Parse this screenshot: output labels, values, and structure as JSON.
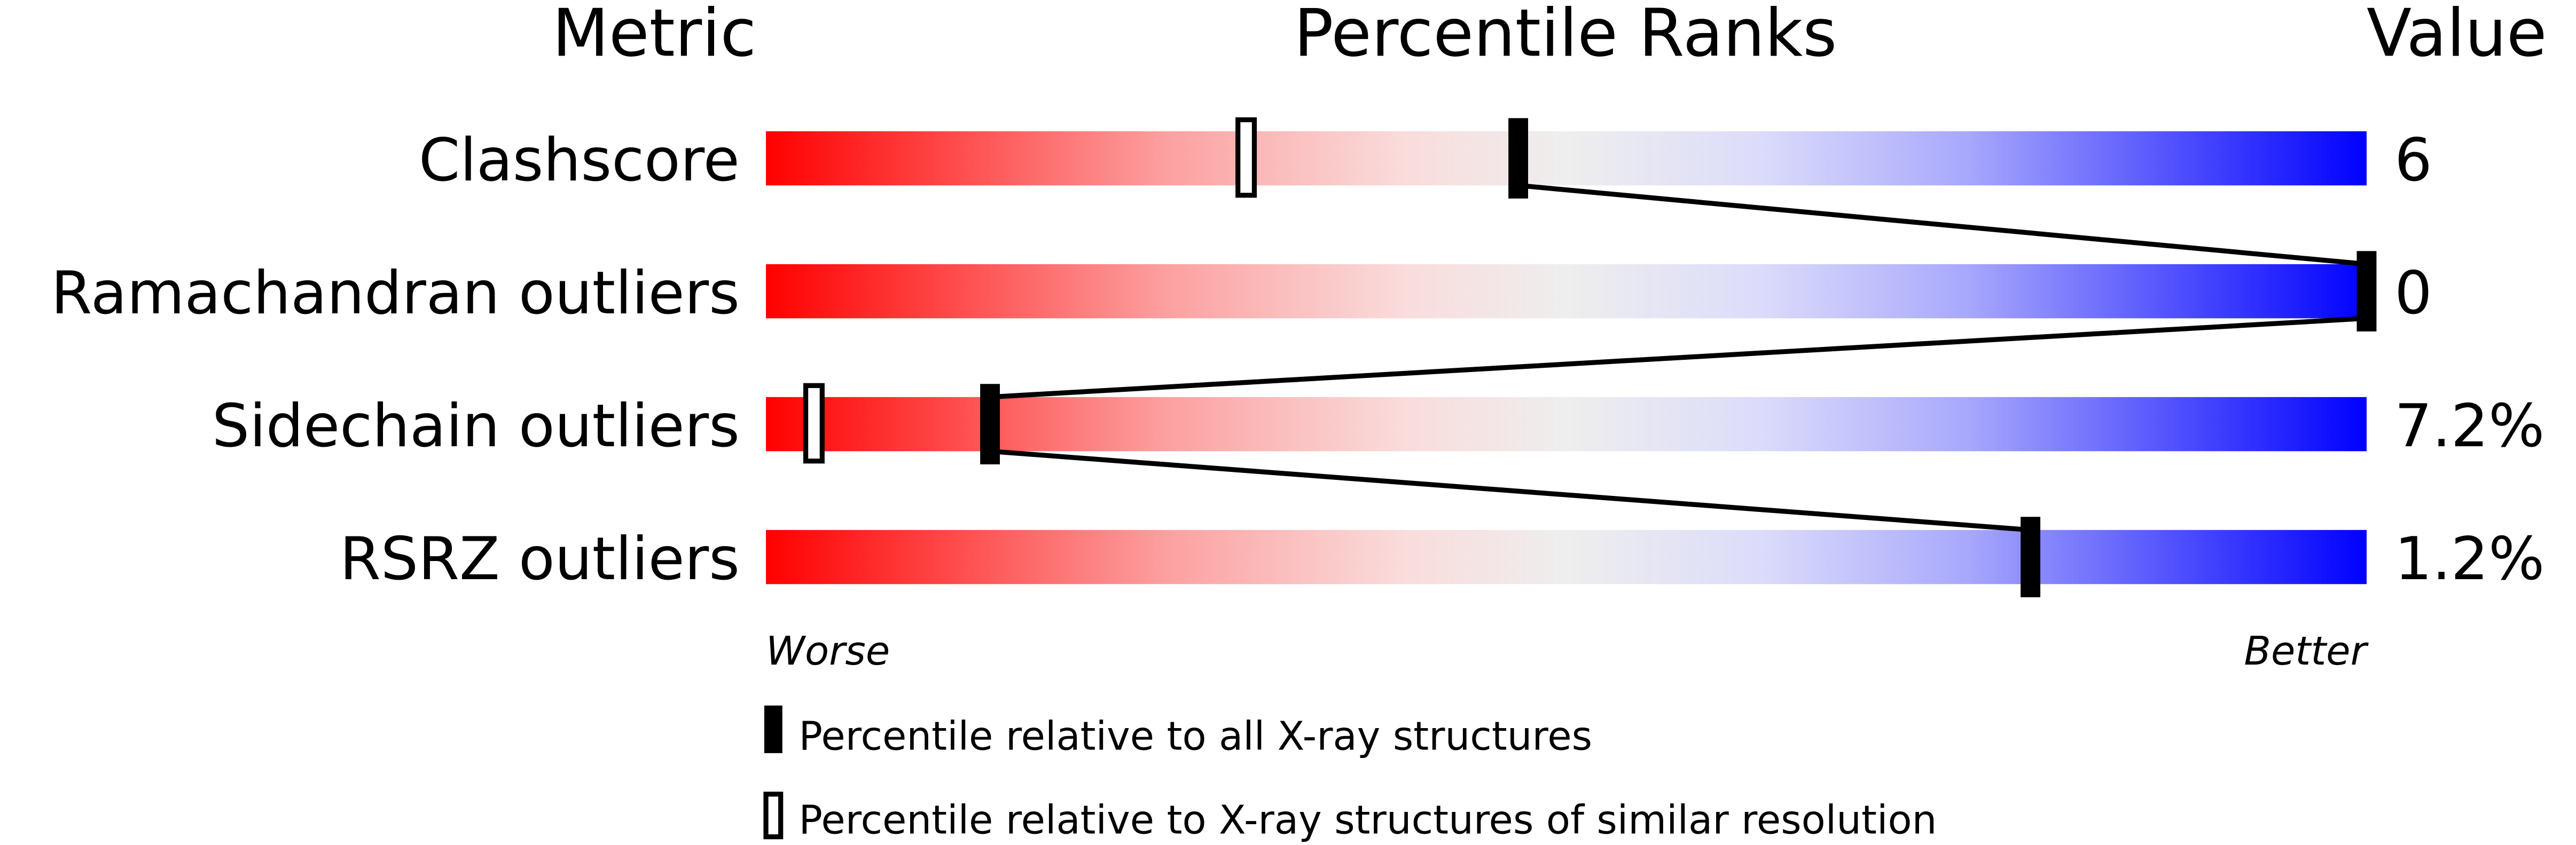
{
  "chart_data": {
    "type": "bar",
    "headers": {
      "metric": "Metric",
      "ranks": "Percentile Ranks",
      "value": "Value"
    },
    "xlim": [
      0,
      100
    ],
    "colors": {
      "worse": "#ff0000",
      "middle": "#eeeeee",
      "better": "#0000ff",
      "marker": "#000000"
    },
    "rows": [
      {
        "metric": "Clashscore",
        "value": "6",
        "percentile_all": 47,
        "percentile_similar": 30
      },
      {
        "metric": "Ramachandran outliers",
        "value": "0",
        "percentile_all": 100,
        "percentile_similar": null
      },
      {
        "metric": "Sidechain outliers",
        "value": "7.2%",
        "percentile_all": 14,
        "percentile_similar": 3
      },
      {
        "metric": "RSRZ outliers",
        "value": "1.2%",
        "percentile_all": 79,
        "percentile_similar": null
      }
    ],
    "axis": {
      "left": "Worse",
      "right": "Better"
    },
    "legend": {
      "all": "Percentile relative to all X-ray structures",
      "similar": "Percentile relative to X-ray structures of similar resolution"
    }
  }
}
